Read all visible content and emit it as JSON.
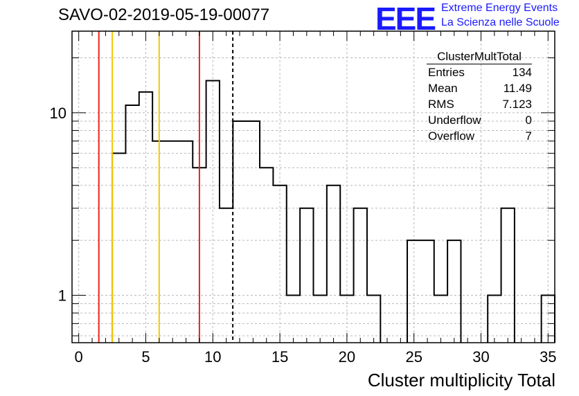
{
  "header": {
    "run_title": "SAVO-02-2019-05-19-00077",
    "logo_text": "EEE",
    "logo_line1": "Extreme Energy Events",
    "logo_line2": "La Scienza nelle Scuole",
    "logo_color": "#1a1aff"
  },
  "stats_box": {
    "title": "ClusterMultTotal",
    "rows": [
      {
        "label": "Entries",
        "value": "134"
      },
      {
        "label": "Mean",
        "value": "11.49"
      },
      {
        "label": "RMS",
        "value": "7.123"
      },
      {
        "label": "Underflow",
        "value": "0"
      },
      {
        "label": "Overflow",
        "value": "7"
      }
    ]
  },
  "chart_data": {
    "type": "bar",
    "title": "",
    "xlabel": "Cluster multiplicity Total",
    "ylabel": "",
    "xlim": [
      -0.5,
      35.5
    ],
    "ylim": [
      0.55,
      28
    ],
    "log_y": true,
    "grid": true,
    "x_ticks": [
      0,
      5,
      10,
      15,
      20,
      25,
      30,
      35
    ],
    "y_ticks": [
      1,
      10
    ],
    "bin_width": 1,
    "bin_centers": [
      0,
      1,
      2,
      3,
      4,
      5,
      6,
      7,
      8,
      9,
      10,
      11,
      12,
      13,
      14,
      15,
      16,
      17,
      18,
      19,
      20,
      21,
      22,
      23,
      24,
      25,
      26,
      27,
      28,
      29,
      30,
      31,
      32,
      33,
      34,
      35
    ],
    "counts": [
      0,
      0,
      0,
      6,
      11,
      13,
      7,
      7,
      7,
      5,
      15,
      3,
      9,
      9,
      5,
      4,
      1,
      3,
      1,
      4,
      1,
      3,
      1,
      0,
      0,
      2,
      2,
      1,
      2,
      0,
      0,
      1,
      3,
      0,
      0,
      1
    ],
    "vertical_lines": [
      {
        "x": 1.5,
        "color": "#e8231a",
        "style": "solid"
      },
      {
        "x": 2.5,
        "color": "#f5c800",
        "style": "solid"
      },
      {
        "x": 6.0,
        "color": "#f5c800",
        "style": "solid"
      },
      {
        "x": 9.0,
        "color": "#e8231a",
        "style": "solid"
      },
      {
        "x": 11.49,
        "color": "#000000",
        "style": "dashed"
      }
    ]
  }
}
